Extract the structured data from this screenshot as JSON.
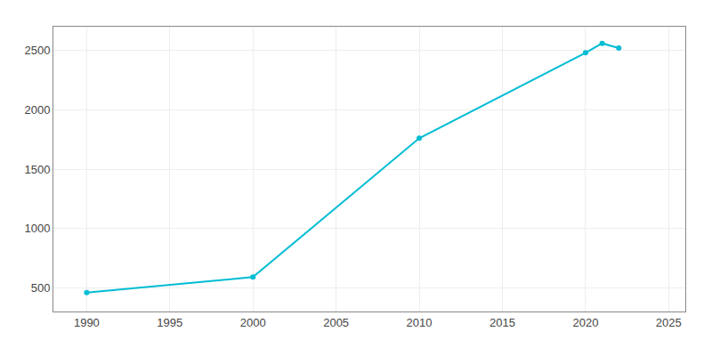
{
  "chart_data": {
    "type": "line",
    "x": [
      1990,
      2000,
      2010,
      2020,
      2021,
      2022
    ],
    "values": [
      460,
      590,
      1760,
      2480,
      2560,
      2520
    ],
    "color": "#00BCD4",
    "marker": "circle",
    "xlim": [
      1988,
      2026
    ],
    "ylim": [
      300,
      2700
    ],
    "xticks": [
      1990,
      1995,
      2000,
      2005,
      2010,
      2015,
      2020,
      2025
    ],
    "yticks": [
      500,
      1000,
      1500,
      2000,
      2500
    ],
    "grid": true
  }
}
